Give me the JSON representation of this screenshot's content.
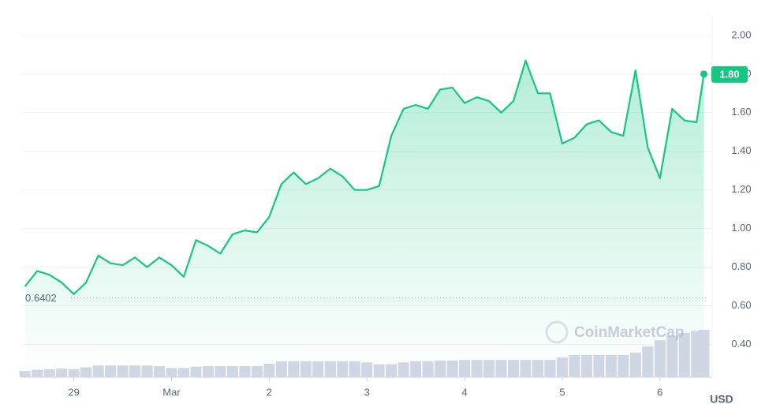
{
  "chart_data": {
    "type": "line",
    "x": [
      -0.5,
      -0.375,
      -0.25,
      -0.125,
      0,
      0.125,
      0.25,
      0.375,
      0.5,
      0.625,
      0.75,
      0.875,
      1,
      1.125,
      1.25,
      1.375,
      1.5,
      1.625,
      1.75,
      1.875,
      2,
      2.125,
      2.25,
      2.375,
      2.5,
      2.625,
      2.75,
      2.875,
      3,
      3.125,
      3.25,
      3.375,
      3.5,
      3.625,
      3.75,
      3.875,
      4,
      4.125,
      4.25,
      4.375,
      4.5,
      4.625,
      4.75,
      4.875,
      5,
      5.125,
      5.25,
      5.375,
      5.5,
      5.625,
      5.75,
      5.875,
      6,
      6.125,
      6.25,
      6.375,
      6.45
    ],
    "series": [
      {
        "color": "#16c784",
        "values": [
          0.7,
          0.78,
          0.76,
          0.72,
          0.66,
          0.72,
          0.86,
          0.82,
          0.81,
          0.85,
          0.8,
          0.85,
          0.81,
          0.75,
          0.94,
          0.91,
          0.87,
          0.97,
          0.99,
          0.98,
          1.06,
          1.23,
          1.29,
          1.23,
          1.26,
          1.31,
          1.27,
          1.2,
          1.2,
          1.22,
          1.48,
          1.62,
          1.64,
          1.62,
          1.72,
          1.73,
          1.65,
          1.68,
          1.66,
          1.6,
          1.66,
          1.87,
          1.7,
          1.7,
          1.44,
          1.47,
          1.54,
          1.56,
          1.5,
          1.48,
          1.82,
          1.42,
          1.26,
          1.62,
          1.56,
          1.55,
          1.8
        ]
      },
      {
        "color": "#cfd6e4",
        "axis": "y2",
        "values": [
          10,
          12,
          13,
          14,
          13,
          16,
          19,
          19,
          19,
          19,
          19,
          18,
          15,
          15,
          17,
          18,
          18,
          18,
          18,
          18,
          22,
          26,
          26,
          26,
          26,
          26,
          26,
          26,
          24,
          21,
          21,
          24,
          26,
          26,
          27,
          27,
          28,
          28,
          28,
          28,
          28,
          28,
          28,
          28,
          32,
          36,
          36,
          36,
          36,
          36,
          40,
          50,
          60,
          67,
          72,
          75,
          77
        ]
      }
    ],
    "xlim": [
      -0.53,
      6.47
    ],
    "xticks": [
      {
        "value": 0,
        "label": "29"
      },
      {
        "value": 1,
        "label": "Mar"
      },
      2,
      3,
      4,
      5,
      6
    ],
    "ylim": [
      0.23,
      2.11
    ],
    "yticks": [
      {
        "value": 0.4,
        "label": "0.40"
      },
      {
        "value": 0.6,
        "label": "0.60"
      },
      {
        "value": 0.8,
        "label": "0.80"
      },
      {
        "value": 1.0,
        "label": "1.00"
      },
      {
        "value": 1.2,
        "label": "1.20"
      },
      {
        "value": 1.4,
        "label": "1.40"
      },
      {
        "value": 1.6,
        "label": "1.60"
      },
      {
        "value": 1.8,
        "label": "1.80"
      },
      {
        "value": 2.0,
        "label": "2.00"
      }
    ],
    "y2lim": [
      0,
      100
    ],
    "grid": true,
    "low_marker": {
      "value": 0.6402,
      "label": "0.6402"
    },
    "price_marker": {
      "value": 1.8,
      "label": "1.80"
    },
    "watermark": "CoinMarketCap",
    "y_axis_label": "USD"
  }
}
